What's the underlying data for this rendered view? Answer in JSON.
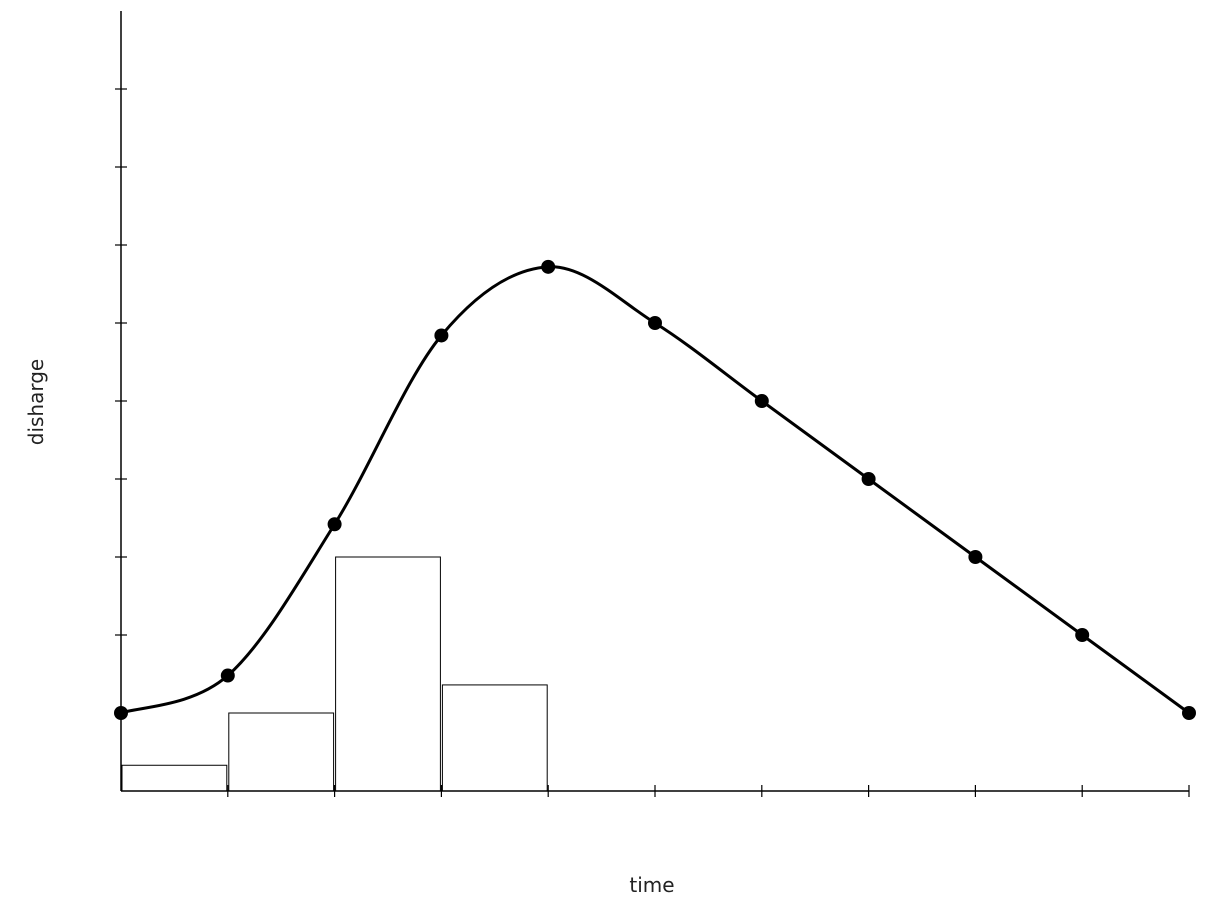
{
  "chart_data": {
    "type": "line",
    "title": "",
    "xlabel": "time",
    "ylabel": "disharge",
    "xlim": [
      0,
      10
    ],
    "ylim": [
      0,
      10
    ],
    "x_ticks": [
      0,
      1,
      2,
      3,
      4,
      5,
      6,
      7,
      8,
      9,
      10
    ],
    "y_ticks": [
      0,
      1,
      2,
      3,
      4,
      5,
      6,
      7,
      8,
      9,
      10
    ],
    "grid": false,
    "legend": "none",
    "series": [
      {
        "type": "line",
        "smooth": true,
        "markers": true,
        "x": [
          0,
          1,
          2,
          3,
          4,
          5,
          6,
          7,
          8,
          9,
          10
        ],
        "y": [
          1.0,
          1.48,
          3.42,
          5.84,
          6.72,
          6.0,
          5.0,
          4.0,
          3.0,
          2.0,
          1.0
        ]
      },
      {
        "type": "bar",
        "x_start": [
          0,
          1,
          2,
          3
        ],
        "x_end": [
          1,
          2,
          3,
          4
        ],
        "values": [
          0.33,
          1.0,
          3.0,
          1.36
        ]
      }
    ]
  }
}
